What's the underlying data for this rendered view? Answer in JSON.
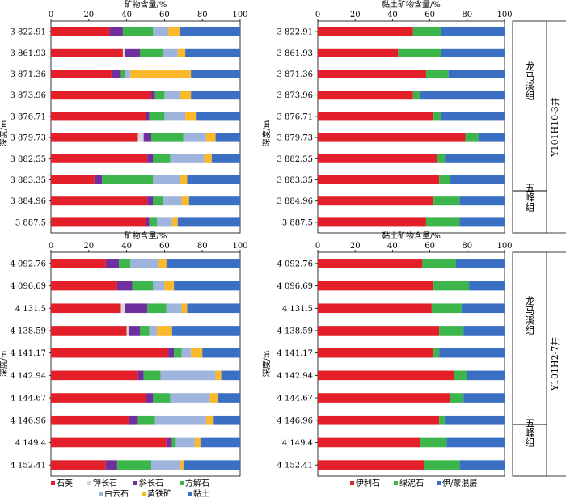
{
  "colors": {
    "quartz": "#e3202a",
    "k_feldspar": "#d9d9d9",
    "plagioclase": "#6f2f9f",
    "calcite": "#3cb54a",
    "dolomite": "#9eb4dc",
    "pyrite": "#fbb82a",
    "clay": "#3a6fc4",
    "illite": "#e3202a",
    "chlorite": "#3cb54a",
    "illite_smectite": "#3a6fc4"
  },
  "labels": {
    "mineral_axis_title": "矿物含量/%",
    "clay_axis_title": "黏土矿物含量/%",
    "depth_label": "深度/m",
    "well_top": "Y101H10-3井",
    "well_bottom": "Y101H2-7井",
    "formation_longmaxi": "龙马溪组",
    "formation_wufeng": "五峰组"
  },
  "legend_mineral": [
    {
      "name": "石英",
      "color_key": "quartz"
    },
    {
      "name": "钾长石",
      "color_key": "k_feldspar"
    },
    {
      "name": "斜长石",
      "color_key": "plagioclase"
    },
    {
      "name": "方解石",
      "color_key": "calcite"
    },
    {
      "name": "白云石",
      "color_key": "dolomite"
    },
    {
      "name": "黄铁矿",
      "color_key": "pyrite"
    },
    {
      "name": "黏土",
      "color_key": "clay"
    }
  ],
  "legend_clay": [
    {
      "name": "伊利石",
      "color_key": "illite"
    },
    {
      "name": "绿泥石",
      "color_key": "chlorite"
    },
    {
      "name": "伊/蒙混层",
      "color_key": "illite_smectite"
    }
  ],
  "chart_data": [
    {
      "type": "bar",
      "orientation": "horizontal",
      "stacked": true,
      "title": "矿物含量/%",
      "ylabel": "",
      "xlim": [
        0,
        100
      ],
      "x_ticks": [
        0,
        20,
        40,
        60,
        80,
        100
      ],
      "categories": [
        "3 822.91",
        "3 861.93",
        "3 871.36",
        "3 873.96",
        "3 876.71",
        "3 879.73",
        "3 882.55",
        "3 883.35",
        "3 884.96",
        "3 887.5"
      ],
      "series": [
        {
          "name": "石英",
          "values": [
            31,
            38,
            32,
            53,
            50,
            46,
            51,
            23,
            51,
            50
          ]
        },
        {
          "name": "钾长石",
          "values": [
            0,
            1,
            0,
            0,
            0,
            3,
            0,
            0,
            0,
            0
          ]
        },
        {
          "name": "斜长石",
          "values": [
            7,
            8,
            5,
            2,
            2,
            4,
            3,
            4,
            3,
            2
          ]
        },
        {
          "name": "方解石",
          "values": [
            16,
            12,
            2,
            5,
            8,
            17,
            9,
            27,
            5,
            4
          ]
        },
        {
          "name": "白云石",
          "values": [
            8,
            8,
            3,
            8,
            11,
            12,
            18,
            14,
            10,
            8
          ]
        },
        {
          "name": "黄铁矿",
          "values": [
            6,
            4,
            32,
            6,
            6,
            5,
            4,
            4,
            4,
            3
          ]
        },
        {
          "name": "黏土",
          "values": [
            32,
            29,
            26,
            26,
            23,
            13,
            15,
            28,
            27,
            33
          ]
        }
      ]
    },
    {
      "type": "bar",
      "orientation": "horizontal",
      "stacked": true,
      "title": "黏土矿物含量/%",
      "ylabel": "深度/m",
      "xlim": [
        0,
        100
      ],
      "x_ticks": [
        0,
        20,
        40,
        60,
        80,
        100
      ],
      "categories": [
        "3 822.91",
        "3 861.93",
        "3 871.36",
        "3 873.96",
        "3 876.71",
        "3 879.73",
        "3 882.55",
        "3 883.35",
        "3 884.96",
        "3 887.5"
      ],
      "series": [
        {
          "name": "伊利石",
          "values": [
            51,
            43,
            58,
            51,
            62,
            79,
            64,
            65,
            62,
            58
          ]
        },
        {
          "name": "绿泥石",
          "values": [
            15,
            23,
            12,
            4,
            4,
            7,
            4,
            6,
            14,
            18
          ]
        },
        {
          "name": "伊/蒙混层",
          "values": [
            34,
            34,
            30,
            45,
            34,
            14,
            32,
            29,
            24,
            24
          ]
        }
      ]
    },
    {
      "type": "bar",
      "orientation": "horizontal",
      "stacked": true,
      "title": "矿物含量/%",
      "ylabel": "深度/m",
      "xlim": [
        0,
        100
      ],
      "x_ticks": [
        0,
        20,
        40,
        60,
        80,
        100
      ],
      "categories": [
        "4 092.76",
        "4 096.69",
        "4 131.5",
        "4 138.59",
        "4 141.17",
        "4 142.94",
        "4 144.67",
        "4 146.96",
        "4 149.4",
        "4 152.41"
      ],
      "series": [
        {
          "name": "石英",
          "values": [
            29,
            35,
            37,
            40,
            62,
            46,
            50,
            41,
            61,
            29
          ]
        },
        {
          "name": "钾长石",
          "values": [
            0,
            0,
            2,
            1,
            0,
            0,
            0,
            0,
            0,
            0
          ]
        },
        {
          "name": "斜长石",
          "values": [
            7,
            8,
            12,
            6,
            3,
            3,
            4,
            5,
            3,
            6
          ]
        },
        {
          "name": "方解石",
          "values": [
            6,
            11,
            10,
            5,
            4,
            9,
            9,
            9,
            2,
            18
          ]
        },
        {
          "name": "白云石",
          "values": [
            15,
            6,
            8,
            4,
            5,
            29,
            21,
            27,
            10,
            15
          ]
        },
        {
          "name": "黄铁矿",
          "values": [
            4,
            5,
            3,
            8,
            6,
            3,
            4,
            4,
            3,
            2
          ]
        },
        {
          "name": "黏土",
          "values": [
            39,
            35,
            28,
            36,
            20,
            10,
            12,
            14,
            21,
            30
          ]
        }
      ]
    },
    {
      "type": "bar",
      "orientation": "horizontal",
      "stacked": true,
      "title": "黏土矿物含量/%",
      "ylabel": "深度/m",
      "xlim": [
        0,
        100
      ],
      "x_ticks": [
        0,
        20,
        40,
        60,
        80,
        100
      ],
      "categories": [
        "4 092.76",
        "4 096.69",
        "4 131.5",
        "4 138.59",
        "4 141.17",
        "4 142.94",
        "4 144.67",
        "4 146.96",
        "4 149.4",
        "4 152.41"
      ],
      "series": [
        {
          "name": "伊利石",
          "values": [
            56,
            62,
            61,
            65,
            62,
            73,
            71,
            65,
            55,
            57
          ]
        },
        {
          "name": "绿泥石",
          "values": [
            18,
            19,
            16,
            13,
            3,
            7,
            7,
            3,
            14,
            19
          ]
        },
        {
          "name": "伊/蒙混层",
          "values": [
            26,
            19,
            23,
            22,
            35,
            20,
            22,
            32,
            31,
            24
          ]
        }
      ]
    }
  ]
}
